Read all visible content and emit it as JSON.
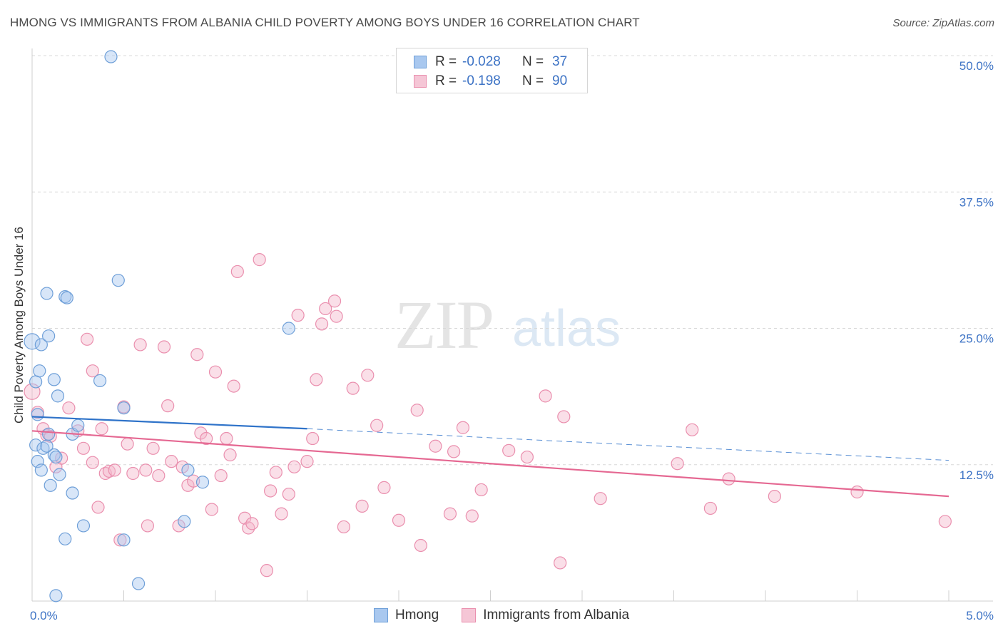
{
  "header": {
    "title": "HMONG VS IMMIGRANTS FROM ALBANIA CHILD POVERTY AMONG BOYS UNDER 16 CORRELATION CHART",
    "source": "Source: ZipAtlas.com"
  },
  "watermark": {
    "zip": "ZIP",
    "atlas": "atlas"
  },
  "legend": {
    "rows": [
      {
        "r_label": "R =",
        "r_value": "-0.028",
        "n_label": "N =",
        "n_value": "37"
      },
      {
        "r_label": "R =",
        "r_value": "-0.198",
        "n_label": "N =",
        "n_value": "90"
      }
    ]
  },
  "bottom_legend": {
    "hmong": "Hmong",
    "albania": "Immigrants from Albania"
  },
  "colors": {
    "hmong_fill": "#a9c8ef",
    "hmong_stroke": "#6e9fd8",
    "hmong_line": "#2f73c9",
    "albania_fill": "#f5b8cc",
    "albania_stroke": "#ea8fae",
    "albania_line": "#e56892",
    "grid": "#d8d8d8",
    "axis_text": "#3d73c5"
  },
  "chart_data": {
    "type": "scatter",
    "title": "HMONG VS IMMIGRANTS FROM ALBANIA CHILD POVERTY AMONG BOYS UNDER 16 CORRELATION CHART",
    "xlabel": "",
    "ylabel": "Child Poverty Among Boys Under 16",
    "xlim": [
      0,
      5
    ],
    "ylim": [
      0,
      50
    ],
    "x_tick_labels": [
      "0.0%",
      "5.0%"
    ],
    "y_ticks": [
      12.5,
      25.0,
      37.5,
      50.0
    ],
    "y_tick_labels": [
      "12.5%",
      "25.0%",
      "37.5%",
      "50.0%"
    ],
    "series": [
      {
        "name": "Hmong",
        "r": -0.028,
        "n": 37,
        "trend": {
          "x0": 0.0,
          "y0": 16.9,
          "x1": 1.5,
          "y1": 15.8,
          "dash_to_x": 5.0,
          "dash_to_y": 12.9
        },
        "points": [
          [
            0.0,
            23.8
          ],
          [
            0.02,
            20.1
          ],
          [
            0.03,
            17.1
          ],
          [
            0.04,
            21.1
          ],
          [
            0.05,
            23.5
          ],
          [
            0.08,
            28.2
          ],
          [
            0.09,
            24.3
          ],
          [
            0.12,
            20.3
          ],
          [
            0.14,
            18.8
          ],
          [
            0.18,
            27.9
          ],
          [
            0.19,
            27.8
          ],
          [
            0.22,
            15.3
          ],
          [
            0.25,
            16.1
          ],
          [
            0.37,
            20.2
          ],
          [
            0.43,
            49.9
          ],
          [
            0.47,
            29.4
          ],
          [
            0.5,
            17.7
          ],
          [
            0.02,
            14.3
          ],
          [
            0.03,
            12.8
          ],
          [
            0.05,
            12.0
          ],
          [
            0.06,
            14.0
          ],
          [
            0.08,
            14.2
          ],
          [
            0.1,
            10.6
          ],
          [
            0.12,
            13.4
          ],
          [
            0.13,
            13.2
          ],
          [
            0.15,
            11.6
          ],
          [
            0.22,
            9.9
          ],
          [
            0.28,
            6.9
          ],
          [
            0.18,
            5.7
          ],
          [
            0.5,
            5.6
          ],
          [
            0.58,
            1.6
          ],
          [
            0.83,
            7.3
          ],
          [
            0.85,
            12.0
          ],
          [
            0.93,
            10.9
          ],
          [
            1.4,
            25.0
          ],
          [
            0.09,
            15.3
          ],
          [
            0.13,
            0.5
          ]
        ]
      },
      {
        "name": "Immigrants from Albania",
        "r": -0.198,
        "n": 90,
        "trend": {
          "x0": 0.0,
          "y0": 15.6,
          "x1": 5.0,
          "y1": 9.6
        },
        "points": [
          [
            0.0,
            19.2
          ],
          [
            0.03,
            17.3
          ],
          [
            0.06,
            15.8
          ],
          [
            0.08,
            15.2
          ],
          [
            0.1,
            15.1
          ],
          [
            0.13,
            12.3
          ],
          [
            0.16,
            13.1
          ],
          [
            0.2,
            17.7
          ],
          [
            0.25,
            15.6
          ],
          [
            0.28,
            14.0
          ],
          [
            0.3,
            24.0
          ],
          [
            0.33,
            21.1
          ],
          [
            0.33,
            12.7
          ],
          [
            0.36,
            8.6
          ],
          [
            0.38,
            15.8
          ],
          [
            0.4,
            11.7
          ],
          [
            0.42,
            11.9
          ],
          [
            0.45,
            12.0
          ],
          [
            0.48,
            5.6
          ],
          [
            0.5,
            17.8
          ],
          [
            0.52,
            14.4
          ],
          [
            0.55,
            11.7
          ],
          [
            0.59,
            23.5
          ],
          [
            0.62,
            12.0
          ],
          [
            0.63,
            6.9
          ],
          [
            0.66,
            14.0
          ],
          [
            0.69,
            11.5
          ],
          [
            0.72,
            23.3
          ],
          [
            0.74,
            17.9
          ],
          [
            0.76,
            12.8
          ],
          [
            0.8,
            6.9
          ],
          [
            0.82,
            12.3
          ],
          [
            0.85,
            10.6
          ],
          [
            0.88,
            11.0
          ],
          [
            0.9,
            22.6
          ],
          [
            0.92,
            15.4
          ],
          [
            0.95,
            14.9
          ],
          [
            0.98,
            8.4
          ],
          [
            1.0,
            21.0
          ],
          [
            1.03,
            11.5
          ],
          [
            1.06,
            14.9
          ],
          [
            1.08,
            13.4
          ],
          [
            1.1,
            19.7
          ],
          [
            1.12,
            30.2
          ],
          [
            1.16,
            7.6
          ],
          [
            1.18,
            6.7
          ],
          [
            1.2,
            7.1
          ],
          [
            1.24,
            31.3
          ],
          [
            1.28,
            2.8
          ],
          [
            1.3,
            10.1
          ],
          [
            1.33,
            11.8
          ],
          [
            1.36,
            8.0
          ],
          [
            1.4,
            9.8
          ],
          [
            1.43,
            12.3
          ],
          [
            1.45,
            26.2
          ],
          [
            1.5,
            12.8
          ],
          [
            1.53,
            14.9
          ],
          [
            1.55,
            20.3
          ],
          [
            1.58,
            25.4
          ],
          [
            1.6,
            26.8
          ],
          [
            1.65,
            27.5
          ],
          [
            1.66,
            26.1
          ],
          [
            1.7,
            6.8
          ],
          [
            1.75,
            19.5
          ],
          [
            1.8,
            8.7
          ],
          [
            1.83,
            20.7
          ],
          [
            1.88,
            16.1
          ],
          [
            1.92,
            10.4
          ],
          [
            2.0,
            7.4
          ],
          [
            2.1,
            17.5
          ],
          [
            2.12,
            5.1
          ],
          [
            2.2,
            14.2
          ],
          [
            2.28,
            8.0
          ],
          [
            2.3,
            13.7
          ],
          [
            2.35,
            15.9
          ],
          [
            2.4,
            7.8
          ],
          [
            2.45,
            10.2
          ],
          [
            2.6,
            13.8
          ],
          [
            2.7,
            13.2
          ],
          [
            2.8,
            18.8
          ],
          [
            2.88,
            3.5
          ],
          [
            2.9,
            16.9
          ],
          [
            3.1,
            9.4
          ],
          [
            3.52,
            12.6
          ],
          [
            3.6,
            15.7
          ],
          [
            3.7,
            8.5
          ],
          [
            3.8,
            11.2
          ],
          [
            4.05,
            9.6
          ],
          [
            4.5,
            10.0
          ],
          [
            4.98,
            7.3
          ]
        ]
      }
    ]
  }
}
